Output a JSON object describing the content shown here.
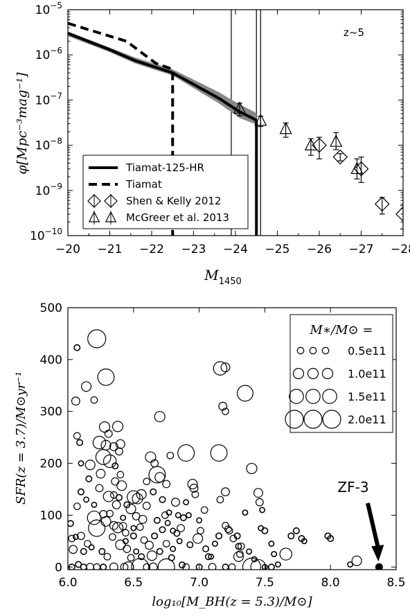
{
  "chart_data": [
    {
      "type": "line",
      "annotation": "z~5",
      "xlabel": "M",
      "xlabel_sub": "1450",
      "ylabel": "φ[Mpc⁻³mag⁻¹]",
      "xlim": [
        -20,
        -28
      ],
      "ylim": [
        1e-10,
        1e-05
      ],
      "yscale": "log",
      "x_ticks": [
        "−20",
        "−21",
        "−22",
        "−23",
        "−24",
        "−25",
        "−26",
        "−27",
        "−28"
      ],
      "y_ticks": [
        {
          "value": 1e-10,
          "base": "10",
          "exp": "-10"
        },
        {
          "value": 1e-09,
          "base": "10",
          "exp": "-9"
        },
        {
          "value": 1e-08,
          "base": "10",
          "exp": "-8"
        },
        {
          "value": 1e-07,
          "base": "10",
          "exp": "-7"
        },
        {
          "value": 1e-06,
          "base": "10",
          "exp": "-6"
        },
        {
          "value": 1e-05,
          "base": "10",
          "exp": "-5"
        }
      ],
      "vlines": [
        -23.9,
        -24.5,
        -24.6
      ],
      "series": [
        {
          "name": "Tiamat-125-HR",
          "style": "solid",
          "x": [
            -20,
            -21.0,
            -21.6,
            -22.5,
            -23.6,
            -24.1,
            -24.45,
            -24.5,
            -24.5
          ],
          "y": [
            3e-06,
            1.3e-06,
            7.5e-07,
            4e-07,
            1.1e-07,
            5.5e-08,
            3.8e-08,
            3.5e-08,
            1e-10
          ],
          "band_lower": [
            2.6e-06,
            1.15e-06,
            6.5e-07,
            3.5e-07,
            8.5e-08,
            4e-08,
            3e-08,
            2.8e-08,
            1e-10
          ],
          "band_upper": [
            3.3e-06,
            1.45e-06,
            8.8e-07,
            4.8e-07,
            1.5e-07,
            8e-08,
            5.5e-08,
            5e-08,
            1e-10
          ]
        },
        {
          "name": "Tiamat",
          "style": "dashed",
          "x": [
            -20,
            -21.4,
            -22.1,
            -22.5,
            -22.5
          ],
          "y": [
            5e-06,
            2e-06,
            6.5e-07,
            4.8e-07,
            1e-10
          ]
        }
      ],
      "points": [
        {
          "name": "Shen & Kelly 2012",
          "marker": "diamond",
          "x": [
            -26.0,
            -26.5,
            -27.0,
            -27.5,
            -28.0
          ],
          "y": [
            1e-08,
            5.5e-09,
            3e-09,
            5e-10,
            3e-10
          ],
          "yerr_low": [
            5e-09,
            1e-09,
            1.5e-09,
            2e-10,
            1.6e-10
          ],
          "yerr_high": [
            5e-09,
            1e-09,
            2.5e-09,
            2e-10,
            1.6e-10
          ]
        },
        {
          "name": "McGreer et al. 2013",
          "marker": "triangle",
          "x": [
            -24.1,
            -24.6,
            -25.2,
            -25.8,
            -26.4,
            -26.9
          ],
          "y": [
            6.5e-08,
            3.5e-08,
            2.3e-08,
            1e-08,
            1.2e-08,
            3e-09
          ],
          "yerr_low": [
            2e-08,
            9e-09,
            8e-09,
            4e-09,
            4e-09,
            1.2e-09
          ],
          "yerr_high": [
            2e-08,
            9e-09,
            8e-09,
            4e-09,
            7e-09,
            2e-09
          ]
        }
      ]
    },
    {
      "type": "scatter",
      "annotation": "ZF-3",
      "xlabel": "log₁₀[M_BH(z = 5.3)/M⊙]",
      "ylabel": "SFR(z = 3.7)/M⊙yr⁻¹",
      "xlim": [
        6.0,
        8.5
      ],
      "ylim": [
        -5,
        500
      ],
      "x_ticks": [
        "6.0",
        "6.5",
        "7.0",
        "7.5",
        "8.0",
        "8.5"
      ],
      "y_ticks": [
        "0",
        "100",
        "200",
        "300",
        "400",
        "500"
      ],
      "legend_title": "M∗/M⊙ =",
      "legend": [
        {
          "label": "0.5e11",
          "mass": 0.5
        },
        {
          "label": "1.0e11",
          "mass": 1.0
        },
        {
          "label": "1.5e11",
          "mass": 1.5
        },
        {
          "label": "2.0e11",
          "mass": 2.0
        }
      ],
      "highlight": {
        "label": "ZF-3",
        "x": 8.37,
        "y": 0
      },
      "points": [
        [
          6.22,
          440,
          2.0
        ],
        [
          6.07,
          423,
          0.4
        ],
        [
          6.14,
          348,
          0.9
        ],
        [
          6.29,
          366,
          1.8
        ],
        [
          6.06,
          320,
          0.7
        ],
        [
          6.2,
          322,
          0.5
        ],
        [
          6.07,
          253,
          0.5
        ],
        [
          6.09,
          240,
          0.4
        ],
        [
          6.17,
          197,
          0.9
        ],
        [
          6.1,
          145,
          0.4
        ],
        [
          6.07,
          117,
          0.5
        ],
        [
          6.02,
          84,
          0.4
        ],
        [
          6.03,
          55,
          0.5
        ],
        [
          6.06,
          58,
          0.3
        ],
        [
          6.2,
          95,
          1.4
        ],
        [
          6.22,
          75,
          1.8
        ],
        [
          6.1,
          60,
          0.6
        ],
        [
          6.04,
          34,
          0.7
        ],
        [
          6.03,
          0,
          0.4
        ],
        [
          6.08,
          5,
          0.4
        ],
        [
          6.24,
          240,
          1.3
        ],
        [
          6.27,
          212,
          1.6
        ],
        [
          6.28,
          270,
          1.0
        ],
        [
          6.29,
          235,
          0.9
        ],
        [
          6.31,
          257,
          0.6
        ],
        [
          6.32,
          204,
          1.3
        ],
        [
          6.35,
          232,
          0.7
        ],
        [
          6.36,
          195,
          0.4
        ],
        [
          6.36,
          165,
          0.6
        ],
        [
          6.38,
          271,
          1.0
        ],
        [
          6.39,
          223,
          0.6
        ],
        [
          6.4,
          237,
          0.8
        ],
        [
          6.4,
          178,
          0.5
        ],
        [
          6.41,
          157,
          0.9
        ],
        [
          6.25,
          180,
          0.8
        ],
        [
          6.24,
          152,
          0.6
        ],
        [
          6.31,
          136,
          1.0
        ],
        [
          6.35,
          139,
          0.5
        ],
        [
          6.37,
          120,
          0.7
        ],
        [
          6.39,
          134,
          0.4
        ],
        [
          6.27,
          102,
          0.6
        ],
        [
          6.29,
          88,
          0.9
        ],
        [
          6.32,
          103,
          0.5
        ],
        [
          6.35,
          80,
          0.7
        ],
        [
          6.38,
          76,
          1.0
        ],
        [
          6.42,
          79,
          0.6
        ],
        [
          6.34,
          58,
          0.5
        ],
        [
          6.4,
          43,
          0.9
        ],
        [
          6.45,
          35,
          0.6
        ],
        [
          6.44,
          66,
          0.5
        ],
        [
          6.48,
          112,
          0.9
        ],
        [
          6.52,
          98,
          0.6
        ],
        [
          6.53,
          132,
          1.0
        ],
        [
          6.55,
          77,
          0.5
        ],
        [
          6.57,
          92,
          0.7
        ],
        [
          6.6,
          118,
          0.6
        ],
        [
          6.58,
          52,
          0.5
        ],
        [
          6.62,
          42,
          0.7
        ],
        [
          6.64,
          22,
          0.9
        ],
        [
          6.48,
          18,
          0.5
        ],
        [
          6.5,
          135,
          1.3
        ],
        [
          6.56,
          140,
          0.9
        ],
        [
          6.6,
          165,
          0.5
        ],
        [
          6.63,
          212,
          1.0
        ],
        [
          6.66,
          200,
          0.6
        ],
        [
          6.7,
          290,
          1.0
        ],
        [
          6.68,
          178,
          1.8
        ],
        [
          6.7,
          173,
          0.9
        ],
        [
          6.75,
          160,
          0.6
        ],
        [
          6.72,
          130,
          0.4
        ],
        [
          6.74,
          100,
          0.5
        ],
        [
          6.77,
          105,
          0.3
        ],
        [
          6.72,
          72,
          0.4
        ],
        [
          6.75,
          45,
          0.5
        ],
        [
          6.8,
          35,
          0.3
        ],
        [
          6.82,
          125,
          0.7
        ],
        [
          6.86,
          75,
          0.6
        ],
        [
          6.83,
          65,
          0.4
        ],
        [
          6.79,
          18,
          0.4
        ],
        [
          6.87,
          4,
          0.4
        ],
        [
          6.9,
          220,
          1.8
        ],
        [
          6.95,
          160,
          0.9
        ],
        [
          6.96,
          152,
          0.7
        ],
        [
          6.97,
          140,
          0.5
        ],
        [
          6.99,
          55,
          0.9
        ],
        [
          7.01,
          70,
          0.5
        ],
        [
          6.93,
          43,
          0.4
        ],
        [
          7.04,
          110,
          0.5
        ],
        [
          7.05,
          35,
          0.4
        ],
        [
          7.07,
          20,
          0.4
        ],
        [
          7.15,
          220,
          1.8
        ],
        [
          7.16,
          383,
          1.4
        ],
        [
          7.2,
          385,
          0.8
        ],
        [
          7.18,
          310,
          0.7
        ],
        [
          7.2,
          300,
          0.5
        ],
        [
          7.2,
          145,
          0.7
        ],
        [
          7.16,
          130,
          0.5
        ],
        [
          7.2,
          80,
          0.5
        ],
        [
          7.22,
          73,
          0.5
        ],
        [
          7.15,
          60,
          0.4
        ],
        [
          7.23,
          70,
          0.5
        ],
        [
          7.26,
          55,
          0.5
        ],
        [
          7.29,
          60,
          0.4
        ],
        [
          7.3,
          40,
          0.4
        ],
        [
          7.31,
          25,
          0.5
        ],
        [
          7.35,
          335,
          1.7
        ],
        [
          7.4,
          190,
          1.0
        ],
        [
          7.45,
          143,
          0.8
        ],
        [
          7.46,
          125,
          0.6
        ],
        [
          7.47,
          75,
          0.3
        ],
        [
          7.5,
          70,
          0.4
        ],
        [
          7.3,
          20,
          0.9
        ],
        [
          7.32,
          40,
          0.5
        ],
        [
          7.42,
          15,
          0.3
        ],
        [
          7.48,
          110,
          0.3
        ],
        [
          7.66,
          25,
          1.2
        ],
        [
          7.7,
          60,
          0.4
        ],
        [
          7.74,
          70,
          0.4
        ],
        [
          7.78,
          55,
          0.4
        ],
        [
          7.8,
          50,
          0.3
        ],
        [
          7.98,
          60,
          0.4
        ],
        [
          8.0,
          55,
          0.4
        ],
        [
          8.2,
          12,
          0.9
        ],
        [
          8.15,
          5,
          0.3
        ],
        [
          7.6,
          5,
          0.3
        ],
        [
          6.55,
          0,
          1.9
        ],
        [
          6.75,
          0,
          1.8
        ],
        [
          7.4,
          0,
          2.0
        ],
        [
          7.45,
          0,
          1.6
        ],
        [
          6.35,
          0,
          0.7
        ],
        [
          6.43,
          0,
          0.6
        ],
        [
          6.46,
          0,
          1.0
        ],
        [
          6.6,
          0,
          0.5
        ],
        [
          6.65,
          0,
          0.7
        ],
        [
          6.9,
          0,
          0.5
        ],
        [
          7.0,
          0,
          0.4
        ],
        [
          7.1,
          0,
          0.6
        ],
        [
          7.2,
          0,
          0.4
        ],
        [
          7.25,
          0,
          0.5
        ],
        [
          7.55,
          0,
          0.4
        ],
        [
          6.12,
          0,
          0.4
        ],
        [
          6.17,
          0,
          0.6
        ],
        [
          6.22,
          0,
          0.5
        ],
        [
          6.27,
          0,
          0.4
        ],
        [
          7.5,
          0,
          0.3
        ],
        [
          6.12,
          30,
          0.4
        ],
        [
          6.15,
          45,
          0.5
        ],
        [
          6.18,
          38,
          0.3
        ],
        [
          6.26,
          30,
          0.4
        ],
        [
          6.3,
          20,
          0.5
        ],
        [
          6.44,
          50,
          0.3
        ],
        [
          6.5,
          60,
          0.4
        ],
        [
          6.52,
          30,
          0.3
        ],
        [
          6.56,
          20,
          0.4
        ],
        [
          6.66,
          60,
          0.4
        ],
        [
          6.7,
          30,
          0.4
        ],
        [
          6.85,
          50,
          0.3
        ],
        [
          6.88,
          95,
          0.4
        ],
        [
          6.92,
          100,
          0.3
        ],
        [
          7.0,
          90,
          0.3
        ],
        [
          7.09,
          20,
          0.3
        ],
        [
          7.12,
          45,
          0.3
        ],
        [
          6.1,
          200,
          0.3
        ],
        [
          6.16,
          170,
          0.4
        ],
        [
          6.14,
          130,
          0.3
        ],
        [
          6.2,
          120,
          0.3
        ],
        [
          6.42,
          95,
          0.3
        ],
        [
          6.45,
          120,
          0.4
        ],
        [
          6.5,
          75,
          0.3
        ],
        [
          6.65,
          145,
          0.4
        ],
        [
          6.68,
          90,
          0.4
        ],
        [
          6.76,
          85,
          0.3
        ],
        [
          6.8,
          70,
          0.3
        ],
        [
          6.84,
          100,
          0.3
        ],
        [
          6.78,
          215,
          0.5
        ],
        [
          6.9,
          125,
          0.3
        ],
        [
          7.35,
          105,
          0.3
        ],
        [
          7.38,
          30,
          0.3
        ],
        [
          7.55,
          45,
          0.3
        ],
        [
          7.57,
          25,
          0.3
        ]
      ]
    }
  ]
}
